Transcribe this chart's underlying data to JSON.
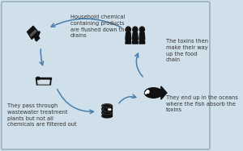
{
  "bg_color": "#cfe0eb",
  "border_color": "#9ab0be",
  "arrow_color": "#4a7fad",
  "icon_color": "#111111",
  "text_color": "#333333",
  "texts": {
    "top_label": "Household chemical\ncontaining products\nare flushed down the\ndrains",
    "left_label": "They pass through\nwastewater treatment\nplants but not all\nchemicals are filtered out",
    "bottom_right_label": "They end up in the oceans\nwhere the fish absorb the\ntoxins",
    "right_label": "The toxins then\nmake their way\nup the food\nchain"
  }
}
